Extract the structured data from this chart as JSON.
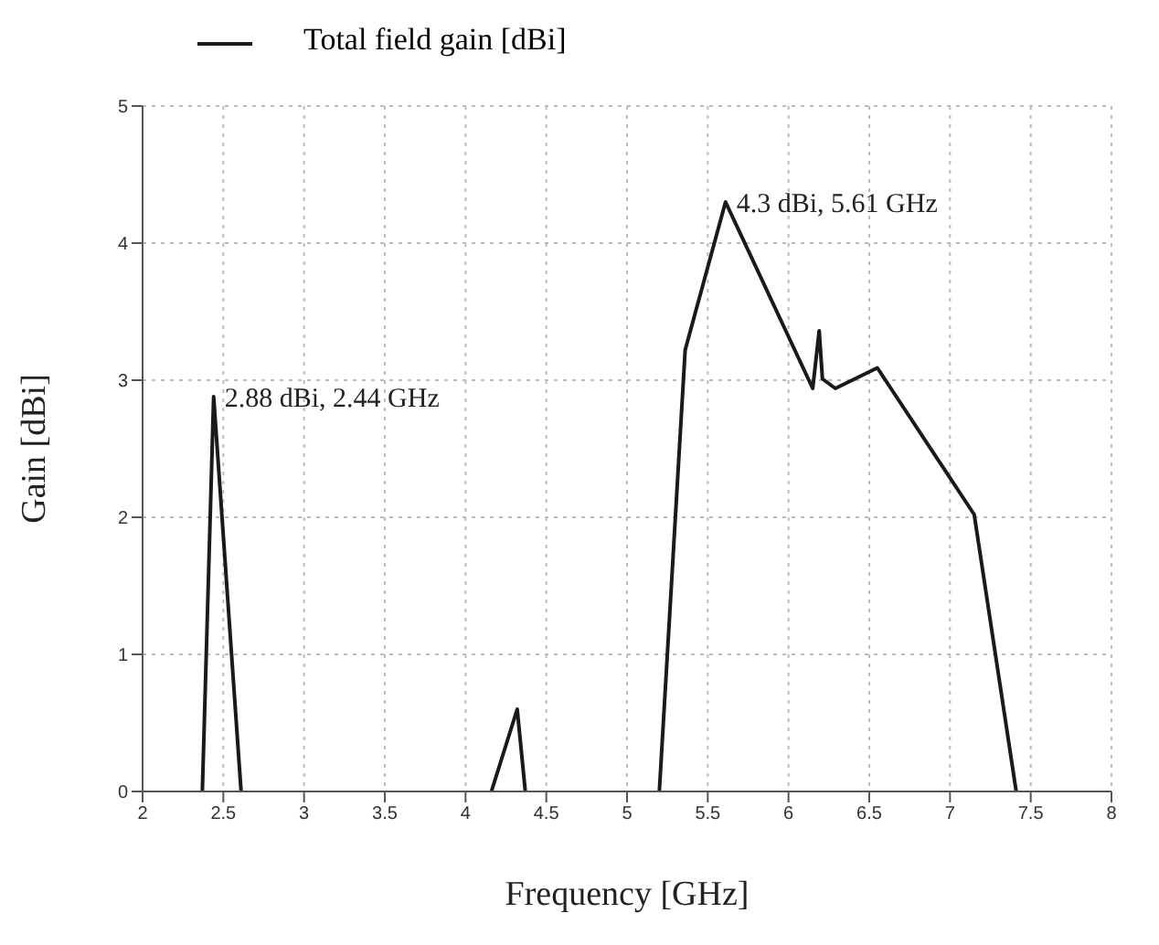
{
  "chart_data": {
    "type": "line",
    "xlabel": "Frequency [GHz]",
    "ylabel": "Gain [dBi]",
    "series": [
      {
        "name": "Total field gain [dBi]",
        "color": "#1a1a1a",
        "x": [
          2.37,
          2.44,
          2.61,
          3.4,
          4.16,
          4.32,
          4.37,
          4.8,
          5.2,
          5.36,
          5.61,
          6.15,
          6.19,
          6.21,
          6.29,
          6.55,
          7.15,
          7.41
        ],
        "values": [
          0,
          2.88,
          0,
          null,
          0,
          0.6,
          0,
          null,
          0,
          3.22,
          4.3,
          2.94,
          3.36,
          3.01,
          2.94,
          3.09,
          2.02,
          0
        ]
      }
    ],
    "xlim": [
      2,
      8
    ],
    "xticks": [
      2,
      2.5,
      3,
      3.5,
      4,
      4.5,
      5,
      5.5,
      6,
      6.5,
      7,
      7.5,
      8
    ],
    "ylim": [
      0,
      5
    ],
    "yticks": [
      0,
      1,
      2,
      3,
      4,
      5
    ],
    "grid": true,
    "legend": "top left",
    "marker": "none",
    "line_style": "solid",
    "annotations": [
      {
        "text": "2.88 dBi, 2.44 GHz",
        "x": 2.44,
        "y": 2.88
      },
      {
        "text": "4.3 dBi, 5.61 GHz",
        "x": 5.61,
        "y": 4.3
      }
    ]
  }
}
